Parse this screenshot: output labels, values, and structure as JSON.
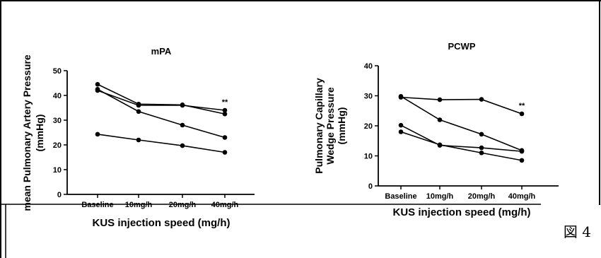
{
  "figure_label": "図 4",
  "chart_data": [
    {
      "type": "line",
      "title": "mPA",
      "xlabel": "KUS injection speed (mg/h)",
      "ylabel": [
        "mean Pulmonary Artery Pressure",
        "(mmHg)"
      ],
      "categories": [
        "Baseline",
        "10mg/h",
        "20mg/h",
        "40mg/h"
      ],
      "ylim": [
        0,
        50
      ],
      "yticks": [
        0,
        10,
        20,
        30,
        40,
        50
      ],
      "annotation": {
        "text": "**",
        "category": "40mg/h"
      },
      "series": [
        {
          "values": [
            44.5,
            36.5,
            36.2,
            32.5
          ]
        },
        {
          "values": [
            42.0,
            36.0,
            36.0,
            34.0
          ]
        },
        {
          "values": [
            42.5,
            33.5,
            28.0,
            23.0
          ]
        },
        {
          "values": [
            24.3,
            22.0,
            19.7,
            17.0
          ]
        }
      ]
    },
    {
      "type": "line",
      "title": "PCWP",
      "xlabel": "KUS injection speed (mg/h)",
      "ylabel": [
        "Pulmonary Capillary",
        "Wedge Pressure",
        "(mmHg)"
      ],
      "categories": [
        "Baseline",
        "10mg/h",
        "20mg/h",
        "40mg/h"
      ],
      "ylim": [
        0,
        40
      ],
      "yticks": [
        0,
        10,
        20,
        30,
        40
      ],
      "annotation": {
        "text": "**",
        "category": "40mg/h"
      },
      "series": [
        {
          "values": [
            29.5,
            28.7,
            28.8,
            24.0
          ]
        },
        {
          "values": [
            29.8,
            22.0,
            17.2,
            11.8
          ]
        },
        {
          "values": [
            20.2,
            13.5,
            12.7,
            11.5
          ]
        },
        {
          "values": [
            18.0,
            13.7,
            11.0,
            8.5
          ]
        }
      ]
    }
  ]
}
